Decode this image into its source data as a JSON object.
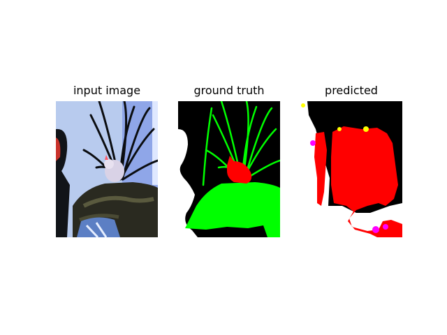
{
  "figure": {
    "panels": [
      {
        "title": "input image"
      },
      {
        "title": "ground truth"
      },
      {
        "title": "predicted"
      }
    ]
  },
  "colors": {
    "background": "#000000",
    "label_plant": "#00ff00",
    "label_cat": "#ff0000",
    "label_chair": "#00ff00",
    "label_unlabeled": "#ffffff",
    "pred_main": "#ff0000",
    "pred_minor_magenta": "#ff00ff",
    "pred_minor_yellow": "#ffff00"
  }
}
